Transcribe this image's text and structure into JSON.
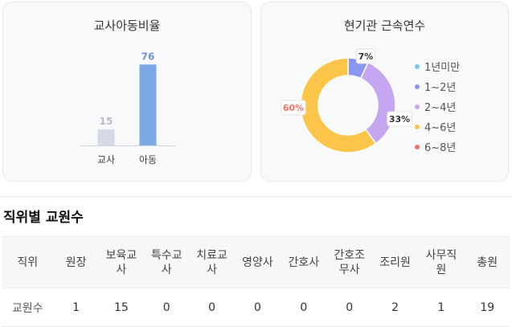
{
  "ratio_card": {
    "title": "교사아동비율"
  },
  "tenure_card": {
    "title": "현기관 근속연수"
  },
  "section": {
    "title": "직위별 교원수"
  },
  "chart_data": [
    {
      "type": "bar",
      "title": "교사아동비율",
      "categories": [
        "교사",
        "아동"
      ],
      "values": [
        15,
        76
      ],
      "colors": [
        "#d5d8e6",
        "#7ba9e6"
      ],
      "label_colors": [
        "#b9bccb",
        "#6f96d4"
      ],
      "ylim": [
        0,
        80
      ],
      "grid": false
    },
    {
      "type": "pie",
      "title": "현기관 근속연수",
      "legend_position": "right",
      "series": [
        {
          "name": "1년미만",
          "value": 0,
          "color": "#7cc3ea"
        },
        {
          "name": "1~2년",
          "value": 7,
          "color": "#8c95ef"
        },
        {
          "name": "2~4년",
          "value": 33,
          "color": "#c6a6f0"
        },
        {
          "name": "4~6년",
          "value": 60,
          "color": "#fbc54a"
        },
        {
          "name": "6~8년",
          "value": 0,
          "color": "#f0736b"
        }
      ],
      "data_labels": [
        "7%",
        "33%",
        "60%"
      ],
      "label_text_colors": [
        "#333333",
        "#333333",
        "#f0736b"
      ]
    }
  ],
  "table": {
    "headers": [
      "직위",
      "원장",
      "보육교사",
      "특수교사",
      "치료교사",
      "영양사",
      "간호사",
      "간호조무사",
      "조리원",
      "사무직원",
      "총원"
    ],
    "row": [
      "교원수",
      "1",
      "15",
      "0",
      "0",
      "0",
      "0",
      "0",
      "2",
      "1",
      "19"
    ]
  }
}
